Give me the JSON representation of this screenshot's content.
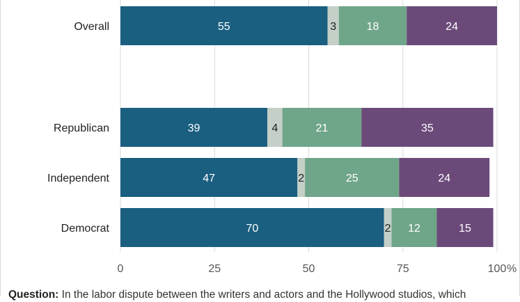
{
  "colors": {
    "support_writers": "#1a5e80",
    "neutral": "#c4cfc7",
    "support_studios": "#6fa589",
    "unsure": "#6b4a7a",
    "gridline": "#d9d9d9",
    "axis_text": "#555555",
    "label_dark": "#222222",
    "label_light": "#ffffff"
  },
  "chart_data": {
    "type": "bar",
    "orientation": "horizontal",
    "stacked": true,
    "categories": [
      "Overall",
      "Republican",
      "Independent",
      "Democrat"
    ],
    "series": [
      {
        "values": [
          55,
          39,
          47,
          70
        ]
      },
      {
        "values": [
          3,
          4,
          2,
          2
        ]
      },
      {
        "values": [
          18,
          21,
          25,
          12
        ]
      },
      {
        "values": [
          24,
          35,
          24,
          15
        ]
      }
    ],
    "xlim": [
      0,
      100
    ],
    "xticks": [
      "0",
      "25",
      "50",
      "75",
      "100"
    ],
    "x_unit": "%",
    "grid": true
  },
  "footer": {
    "question_label": "Question:",
    "question_text": " In the labor dispute between the writers and actors and the Hollywood studios, which"
  }
}
